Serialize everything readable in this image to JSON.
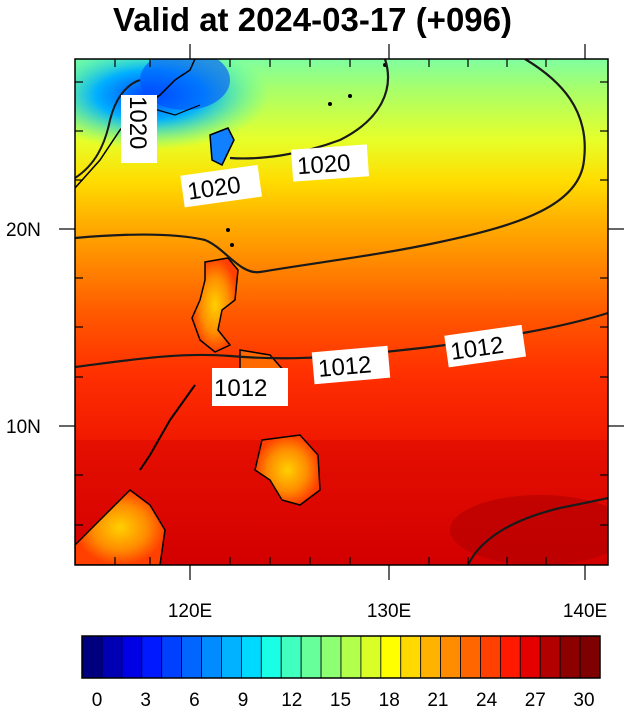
{
  "title": "Valid at 2024-03-17 (+096)",
  "axes": {
    "lat_ticks": [
      "20N",
      "10N"
    ],
    "lon_ticks": [
      "120E",
      "130E",
      "140E"
    ]
  },
  "contour_labels": [
    "1020",
    "1020",
    "1020",
    "1012",
    "1012",
    "1012"
  ],
  "colorbar": {
    "tick_labels": [
      "0",
      "3",
      "6",
      "9",
      "12",
      "15",
      "18",
      "21",
      "24",
      "27",
      "30"
    ],
    "colors": [
      "#00007f",
      "#0000b2",
      "#0000e5",
      "#0019ff",
      "#0040ff",
      "#0066ff",
      "#008cff",
      "#00b2ff",
      "#00d9ff",
      "#19ffe5",
      "#40ffbf",
      "#66ff99",
      "#8cff73",
      "#b2ff4c",
      "#d9ff26",
      "#ffff00",
      "#ffd900",
      "#ffb200",
      "#ff8c00",
      "#ff6600",
      "#ff4000",
      "#ff1900",
      "#e50000",
      "#b20000",
      "#8c0000",
      "#7f0000"
    ]
  }
}
